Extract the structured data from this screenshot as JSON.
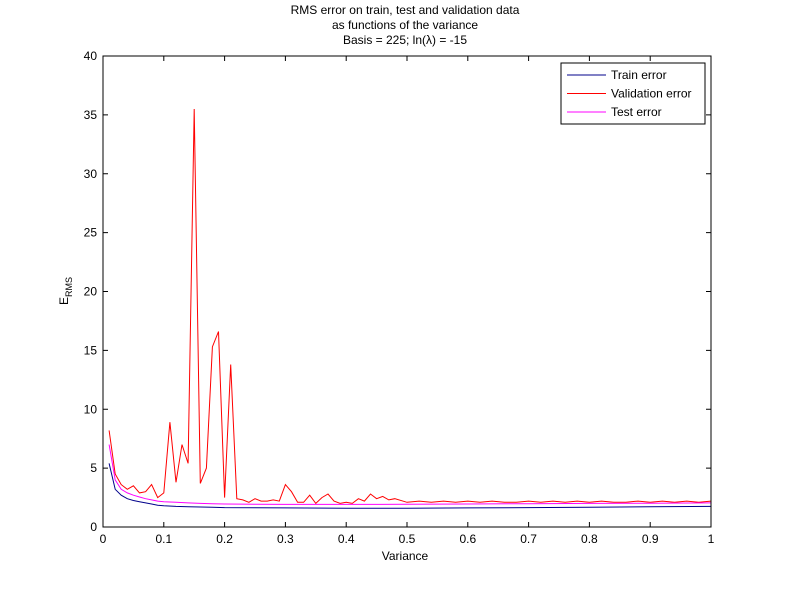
{
  "chart_data": {
    "type": "line",
    "title_lines": [
      "RMS error on train, test and validation data",
      "as functions of the variance",
      "Basis = 225; ln(λ) = -15"
    ],
    "xlabel": "Variance",
    "ylabel": "E",
    "ylabel_sub": "RMS",
    "xlim": [
      0,
      1
    ],
    "ylim": [
      0,
      40
    ],
    "xticks": [
      0,
      0.1,
      0.2,
      0.3,
      0.4,
      0.5,
      0.6,
      0.7,
      0.8,
      0.9,
      1
    ],
    "xtick_labels": [
      "0",
      "0.1",
      "0.2",
      "0.3",
      "0.4",
      "0.5",
      "0.6",
      "0.7",
      "0.8",
      "0.9",
      "1"
    ],
    "yticks": [
      0,
      5,
      10,
      15,
      20,
      25,
      30,
      35,
      40
    ],
    "ytick_labels": [
      "0",
      "5",
      "10",
      "15",
      "20",
      "25",
      "30",
      "35",
      "40"
    ],
    "grid": false,
    "legend_position": "top-right",
    "series": [
      {
        "name": "Train error",
        "color": "#00008b",
        "points": [
          [
            0.01,
            5.4
          ],
          [
            0.02,
            3.2
          ],
          [
            0.03,
            2.7
          ],
          [
            0.04,
            2.4
          ],
          [
            0.05,
            2.25
          ],
          [
            0.06,
            2.15
          ],
          [
            0.07,
            2.05
          ],
          [
            0.08,
            1.95
          ],
          [
            0.09,
            1.85
          ],
          [
            0.1,
            1.8
          ],
          [
            0.12,
            1.75
          ],
          [
            0.14,
            1.72
          ],
          [
            0.16,
            1.7
          ],
          [
            0.18,
            1.68
          ],
          [
            0.2,
            1.65
          ],
          [
            0.25,
            1.63
          ],
          [
            0.3,
            1.62
          ],
          [
            0.4,
            1.6
          ],
          [
            0.5,
            1.6
          ],
          [
            0.6,
            1.62
          ],
          [
            0.7,
            1.65
          ],
          [
            0.8,
            1.68
          ],
          [
            0.9,
            1.72
          ],
          [
            1.0,
            1.75
          ]
        ]
      },
      {
        "name": "Validation error",
        "color": "#ff0000",
        "points": [
          [
            0.01,
            8.2
          ],
          [
            0.02,
            4.5
          ],
          [
            0.03,
            3.6
          ],
          [
            0.04,
            3.2
          ],
          [
            0.05,
            3.5
          ],
          [
            0.06,
            2.9
          ],
          [
            0.07,
            3.0
          ],
          [
            0.08,
            3.6
          ],
          [
            0.09,
            2.5
          ],
          [
            0.1,
            2.9
          ],
          [
            0.11,
            8.9
          ],
          [
            0.12,
            3.8
          ],
          [
            0.13,
            7.0
          ],
          [
            0.14,
            5.4
          ],
          [
            0.15,
            35.5
          ],
          [
            0.16,
            3.7
          ],
          [
            0.17,
            5.0
          ],
          [
            0.18,
            15.3
          ],
          [
            0.19,
            16.6
          ],
          [
            0.2,
            2.5
          ],
          [
            0.21,
            13.8
          ],
          [
            0.22,
            2.4
          ],
          [
            0.23,
            2.3
          ],
          [
            0.24,
            2.1
          ],
          [
            0.25,
            2.4
          ],
          [
            0.26,
            2.2
          ],
          [
            0.27,
            2.2
          ],
          [
            0.28,
            2.3
          ],
          [
            0.29,
            2.2
          ],
          [
            0.3,
            3.6
          ],
          [
            0.31,
            3.0
          ],
          [
            0.32,
            2.1
          ],
          [
            0.33,
            2.1
          ],
          [
            0.34,
            2.7
          ],
          [
            0.35,
            2.0
          ],
          [
            0.36,
            2.5
          ],
          [
            0.37,
            2.8
          ],
          [
            0.38,
            2.2
          ],
          [
            0.39,
            2.0
          ],
          [
            0.4,
            2.1
          ],
          [
            0.41,
            2.0
          ],
          [
            0.42,
            2.4
          ],
          [
            0.43,
            2.2
          ],
          [
            0.44,
            2.8
          ],
          [
            0.45,
            2.4
          ],
          [
            0.46,
            2.6
          ],
          [
            0.47,
            2.3
          ],
          [
            0.48,
            2.4
          ],
          [
            0.5,
            2.1
          ],
          [
            0.52,
            2.2
          ],
          [
            0.54,
            2.1
          ],
          [
            0.56,
            2.2
          ],
          [
            0.58,
            2.1
          ],
          [
            0.6,
            2.2
          ],
          [
            0.62,
            2.1
          ],
          [
            0.64,
            2.2
          ],
          [
            0.66,
            2.1
          ],
          [
            0.68,
            2.1
          ],
          [
            0.7,
            2.2
          ],
          [
            0.72,
            2.1
          ],
          [
            0.74,
            2.2
          ],
          [
            0.76,
            2.1
          ],
          [
            0.78,
            2.2
          ],
          [
            0.8,
            2.1
          ],
          [
            0.82,
            2.2
          ],
          [
            0.84,
            2.1
          ],
          [
            0.86,
            2.1
          ],
          [
            0.88,
            2.2
          ],
          [
            0.9,
            2.1
          ],
          [
            0.92,
            2.2
          ],
          [
            0.94,
            2.1
          ],
          [
            0.96,
            2.2
          ],
          [
            0.98,
            2.1
          ],
          [
            1.0,
            2.2
          ]
        ]
      },
      {
        "name": "Test error",
        "color": "#ff00ff",
        "points": [
          [
            0.01,
            7.0
          ],
          [
            0.02,
            4.0
          ],
          [
            0.03,
            3.2
          ],
          [
            0.04,
            2.9
          ],
          [
            0.05,
            2.7
          ],
          [
            0.06,
            2.55
          ],
          [
            0.07,
            2.4
          ],
          [
            0.08,
            2.3
          ],
          [
            0.09,
            2.2
          ],
          [
            0.1,
            2.15
          ],
          [
            0.12,
            2.1
          ],
          [
            0.14,
            2.05
          ],
          [
            0.16,
            2.0
          ],
          [
            0.18,
            1.97
          ],
          [
            0.2,
            1.95
          ],
          [
            0.25,
            1.93
          ],
          [
            0.3,
            1.92
          ],
          [
            0.4,
            1.92
          ],
          [
            0.5,
            1.93
          ],
          [
            0.6,
            1.95
          ],
          [
            0.7,
            1.98
          ],
          [
            0.8,
            2.0
          ],
          [
            0.9,
            2.02
          ],
          [
            1.0,
            2.05
          ]
        ]
      }
    ]
  }
}
